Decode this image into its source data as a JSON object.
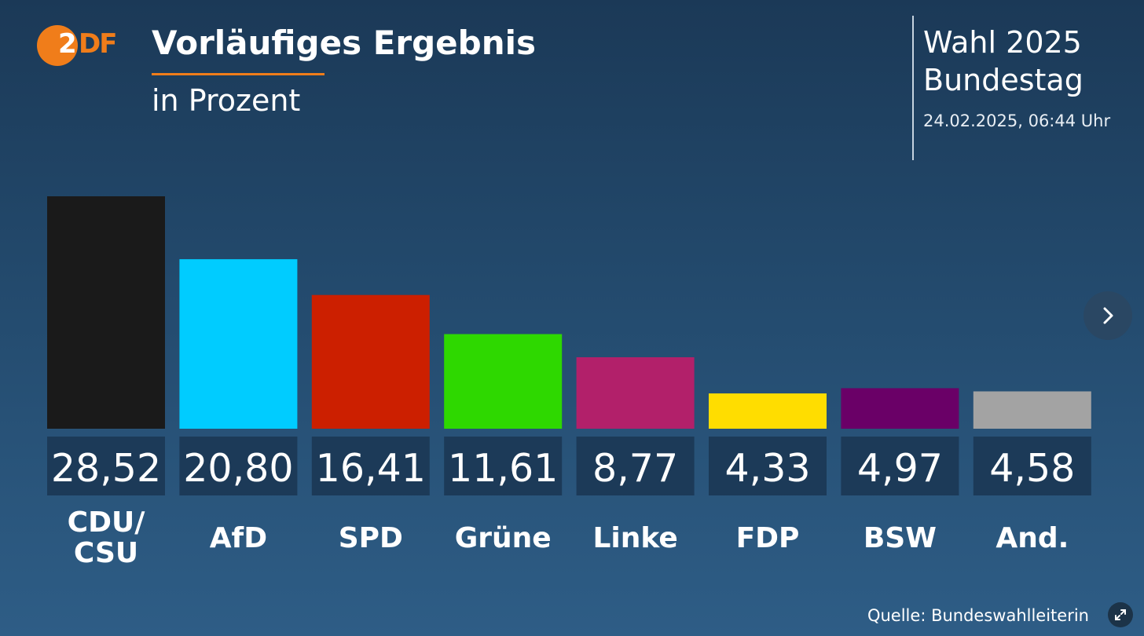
{
  "logo": {
    "text": "ZDF",
    "color": "#f07d1a"
  },
  "header": {
    "title": "Vorläufiges Ergebnis",
    "subtitle": "in Prozent",
    "election_line1": "Wahl 2025",
    "election_line2": "Bundestag",
    "datetime": "24.02.2025, 06:44 Uhr"
  },
  "footer": {
    "source": "Quelle: Bundeswahlleiterin"
  },
  "icons": {
    "next": "chevron-right-icon",
    "expand": "expand-icon"
  },
  "chart_data": {
    "type": "bar",
    "title": "Vorläufiges Ergebnis",
    "subtitle": "in Prozent",
    "categories": [
      "CDU/CSU",
      "AfD",
      "SPD",
      "Grüne",
      "Linke",
      "FDP",
      "BSW",
      "And."
    ],
    "category_lines": [
      [
        "CDU/",
        "CSU"
      ],
      [
        "AfD"
      ],
      [
        "SPD"
      ],
      [
        "Grüne"
      ],
      [
        "Linke"
      ],
      [
        "FDP"
      ],
      [
        "BSW"
      ],
      [
        "And."
      ]
    ],
    "values": [
      28.52,
      20.8,
      16.41,
      11.61,
      8.77,
      4.33,
      4.97,
      4.58
    ],
    "value_labels": [
      "28,52",
      "20,80",
      "16,41",
      "11,61",
      "8,77",
      "4,33",
      "4,97",
      "4,58"
    ],
    "colors": [
      "#1a1a1a",
      "#00ccff",
      "#cc1f00",
      "#2ed800",
      "#b2206a",
      "#ffdd00",
      "#6a0067",
      "#a3a3a3"
    ],
    "ylim": [
      0,
      28.52
    ],
    "xlabel": "",
    "ylabel": ""
  }
}
